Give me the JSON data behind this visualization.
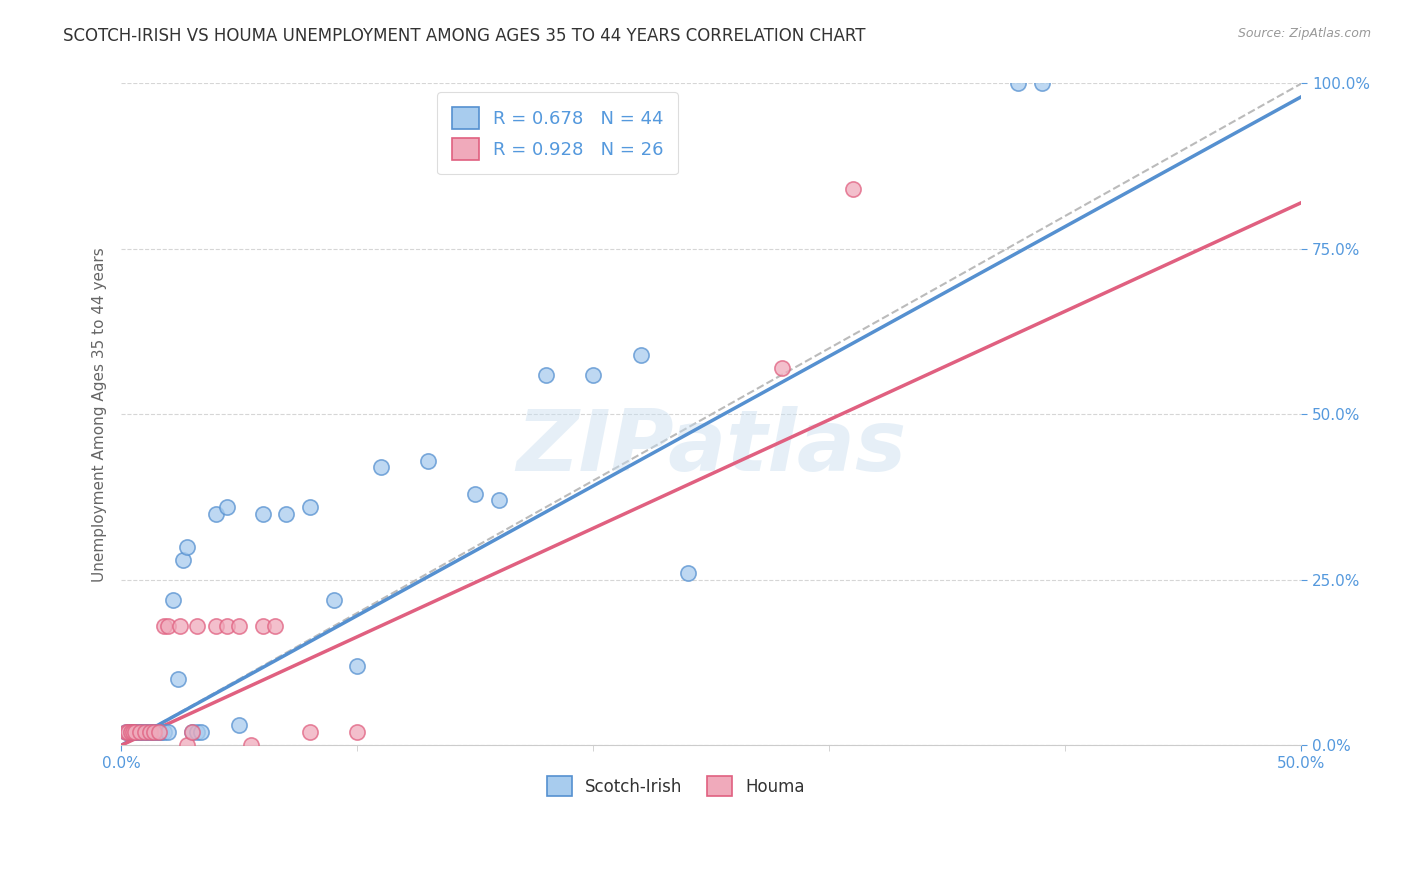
{
  "title": "SCOTCH-IRISH VS HOUMA UNEMPLOYMENT AMONG AGES 35 TO 44 YEARS CORRELATION CHART",
  "source": "Source: ZipAtlas.com",
  "ylabel": "Unemployment Among Ages 35 to 44 years",
  "xlim": [
    0,
    0.5
  ],
  "ylim": [
    0,
    1.0
  ],
  "xticks": [
    0.0,
    0.5
  ],
  "yticks": [
    0.0,
    0.25,
    0.5,
    0.75,
    1.0
  ],
  "xticklabels": [
    "0.0%",
    "50.0%"
  ],
  "yticklabels": [
    "0.0%",
    "25.0%",
    "50.0%",
    "75.0%",
    "100.0%"
  ],
  "scotch_irish_R": 0.678,
  "scotch_irish_N": 44,
  "houma_R": 0.928,
  "houma_N": 26,
  "scotch_irish_color": "#A8CCEE",
  "houma_color": "#F0AABB",
  "scotch_irish_line_color": "#5590D0",
  "houma_line_color": "#E06080",
  "ref_line_color": "#BBBBBB",
  "background_color": "#FFFFFF",
  "grid_color": "#CCCCCC",
  "axis_color": "#5599DD",
  "tick_label_color": "#5599DD",
  "ylabel_color": "#666666",
  "title_color": "#333333",
  "legend_color": "#5599DD",
  "scotch_irish_x": [
    0.002,
    0.003,
    0.004,
    0.005,
    0.005,
    0.006,
    0.007,
    0.008,
    0.009,
    0.01,
    0.011,
    0.012,
    0.013,
    0.014,
    0.015,
    0.016,
    0.017,
    0.018,
    0.02,
    0.022,
    0.024,
    0.026,
    0.028,
    0.03,
    0.032,
    0.034,
    0.04,
    0.045,
    0.05,
    0.06,
    0.07,
    0.08,
    0.09,
    0.1,
    0.11,
    0.13,
    0.15,
    0.16,
    0.18,
    0.2,
    0.22,
    0.24,
    0.38,
    0.39
  ],
  "scotch_irish_y": [
    0.02,
    0.02,
    0.02,
    0.02,
    0.02,
    0.02,
    0.02,
    0.02,
    0.02,
    0.02,
    0.02,
    0.02,
    0.02,
    0.02,
    0.02,
    0.02,
    0.02,
    0.02,
    0.02,
    0.22,
    0.1,
    0.28,
    0.3,
    0.02,
    0.02,
    0.02,
    0.35,
    0.36,
    0.03,
    0.35,
    0.35,
    0.36,
    0.22,
    0.12,
    0.42,
    0.43,
    0.38,
    0.37,
    0.56,
    0.56,
    0.59,
    0.26,
    1.0,
    1.0
  ],
  "houma_x": [
    0.002,
    0.003,
    0.004,
    0.005,
    0.006,
    0.008,
    0.01,
    0.012,
    0.014,
    0.016,
    0.018,
    0.02,
    0.025,
    0.028,
    0.03,
    0.032,
    0.04,
    0.045,
    0.05,
    0.055,
    0.06,
    0.065,
    0.08,
    0.1,
    0.28,
    0.31
  ],
  "houma_y": [
    0.02,
    0.02,
    0.02,
    0.02,
    0.02,
    0.02,
    0.02,
    0.02,
    0.02,
    0.02,
    0.18,
    0.18,
    0.18,
    0.0,
    0.02,
    0.18,
    0.18,
    0.18,
    0.18,
    0.0,
    0.18,
    0.18,
    0.02,
    0.02,
    0.57,
    0.84
  ],
  "scotch_irish_trend_x": [
    0.0,
    0.5
  ],
  "scotch_irish_trend_y": [
    0.0,
    0.98
  ],
  "houma_trend_x": [
    0.0,
    0.5
  ],
  "houma_trend_y": [
    0.0,
    0.82
  ],
  "ref_line_x": [
    0.0,
    0.5
  ],
  "ref_line_y": [
    0.0,
    1.0
  ],
  "marker_size": 120,
  "line_width": 2.5,
  "title_fontsize": 12,
  "axis_label_fontsize": 11,
  "tick_fontsize": 11,
  "legend_fontsize": 13,
  "watermark_text": "ZIPatlas",
  "watermark_color": "#C8DDEF",
  "watermark_alpha": 0.45,
  "watermark_fontsize": 62
}
